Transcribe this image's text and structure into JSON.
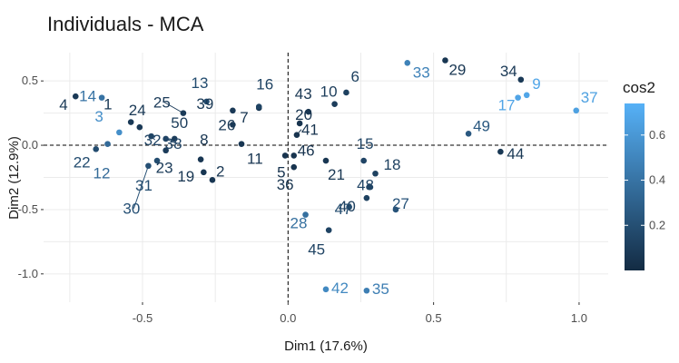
{
  "chart_data": {
    "type": "scatter",
    "title": "Individuals - MCA",
    "xlabel": "Dim1 (17.6%)",
    "ylabel": "Dim2 (12.9%)",
    "xlim": [
      -0.84,
      1.1
    ],
    "ylim": [
      -1.22,
      0.72
    ],
    "x_ticks": [
      -0.5,
      0.0,
      0.5,
      1.0
    ],
    "x_tick_labels": [
      "-0.5",
      "0.0",
      "0.5",
      "1.0"
    ],
    "y_ticks": [
      0.5,
      0.0,
      -0.5,
      -1.0
    ],
    "y_tick_labels": [
      "0.5",
      "0.0",
      "-0.5",
      "-1.0"
    ],
    "grid": true,
    "reference_lines": {
      "x": 0,
      "y": 0,
      "style": "dashed"
    },
    "legend": {
      "title": "cos2",
      "position": "right",
      "ticks": [
        0.2,
        0.4,
        0.6
      ],
      "tick_labels": [
        "0.2",
        "0.4",
        "0.6"
      ],
      "range": [
        0.0,
        0.74
      ],
      "color_low": "#132b43",
      "color_high": "#56b1f7"
    },
    "points": [
      {
        "label": "1",
        "x": -0.54,
        "y": 0.18,
        "cos2": 0.08
      },
      {
        "label": "2",
        "x": -0.26,
        "y": -0.27,
        "cos2": 0.06
      },
      {
        "label": "3",
        "x": -0.58,
        "y": 0.1,
        "cos2": 0.55
      },
      {
        "label": "4",
        "x": -0.73,
        "y": 0.38,
        "cos2": 0.08
      },
      {
        "label": "5",
        "x": -0.01,
        "y": -0.08,
        "cos2": 0.05
      },
      {
        "label": "6",
        "x": 0.2,
        "y": 0.41,
        "cos2": 0.12
      },
      {
        "label": "7",
        "x": -0.1,
        "y": 0.29,
        "cos2": 0.06
      },
      {
        "label": "8",
        "x": -0.3,
        "y": -0.11,
        "cos2": 0.06
      },
      {
        "label": "9",
        "x": 0.82,
        "y": 0.39,
        "cos2": 0.68
      },
      {
        "label": "10",
        "x": 0.16,
        "y": 0.32,
        "cos2": 0.1
      },
      {
        "label": "11",
        "x": -0.16,
        "y": 0.01,
        "cos2": 0.06
      },
      {
        "label": "12",
        "x": -0.62,
        "y": 0.01,
        "cos2": 0.35
      },
      {
        "label": "13",
        "x": -0.28,
        "y": 0.34,
        "cos2": 0.18
      },
      {
        "label": "14",
        "x": -0.64,
        "y": 0.37,
        "cos2": 0.4
      },
      {
        "label": "15",
        "x": 0.26,
        "y": -0.12,
        "cos2": 0.14
      },
      {
        "label": "16",
        "x": -0.1,
        "y": 0.3,
        "cos2": 0.13
      },
      {
        "label": "17",
        "x": 0.79,
        "y": 0.37,
        "cos2": 0.67
      },
      {
        "label": "18",
        "x": 0.3,
        "y": -0.22,
        "cos2": 0.12
      },
      {
        "label": "19",
        "x": -0.29,
        "y": -0.21,
        "cos2": 0.06
      },
      {
        "label": "20",
        "x": 0.04,
        "y": 0.17,
        "cos2": 0.05
      },
      {
        "label": "21",
        "x": 0.13,
        "y": -0.12,
        "cos2": 0.06
      },
      {
        "label": "22",
        "x": -0.66,
        "y": -0.03,
        "cos2": 0.18
      },
      {
        "label": "23",
        "x": -0.42,
        "y": -0.04,
        "cos2": 0.09
      },
      {
        "label": "24",
        "x": -0.51,
        "y": 0.14,
        "cos2": 0.08
      },
      {
        "label": "25",
        "x": -0.36,
        "y": 0.25,
        "cos2": 0.09
      },
      {
        "label": "26",
        "x": -0.19,
        "y": 0.16,
        "cos2": 0.08
      },
      {
        "label": "27",
        "x": 0.37,
        "y": -0.5,
        "cos2": 0.22
      },
      {
        "label": "28",
        "x": 0.06,
        "y": -0.54,
        "cos2": 0.38
      },
      {
        "label": "29",
        "x": 0.54,
        "y": 0.66,
        "cos2": 0.06
      },
      {
        "label": "30",
        "x": -0.48,
        "y": -0.16,
        "cos2": 0.2
      },
      {
        "label": "31",
        "x": -0.45,
        "y": -0.12,
        "cos2": 0.18
      },
      {
        "label": "32",
        "x": -0.47,
        "y": 0.07,
        "cos2": 0.14
      },
      {
        "label": "33",
        "x": 0.41,
        "y": 0.64,
        "cos2": 0.48
      },
      {
        "label": "34",
        "x": 0.8,
        "y": 0.51,
        "cos2": 0.08
      },
      {
        "label": "35",
        "x": 0.27,
        "y": -1.13,
        "cos2": 0.46
      },
      {
        "label": "36",
        "x": 0.02,
        "y": -0.17,
        "cos2": 0.05
      },
      {
        "label": "37",
        "x": 0.99,
        "y": 0.27,
        "cos2": 0.65
      },
      {
        "label": "38",
        "x": -0.42,
        "y": 0.05,
        "cos2": 0.14
      },
      {
        "label": "39",
        "x": -0.19,
        "y": 0.27,
        "cos2": 0.08
      },
      {
        "label": "40",
        "x": 0.27,
        "y": -0.41,
        "cos2": 0.12
      },
      {
        "label": "41",
        "x": 0.03,
        "y": 0.08,
        "cos2": 0.05
      },
      {
        "label": "42",
        "x": 0.13,
        "y": -1.12,
        "cos2": 0.52
      },
      {
        "label": "43",
        "x": 0.07,
        "y": 0.26,
        "cos2": 0.06
      },
      {
        "label": "44",
        "x": 0.73,
        "y": -0.05,
        "cos2": 0.07
      },
      {
        "label": "45",
        "x": 0.14,
        "y": -0.66,
        "cos2": 0.13
      },
      {
        "label": "46",
        "x": 0.02,
        "y": -0.08,
        "cos2": 0.05
      },
      {
        "label": "47",
        "x": 0.21,
        "y": -0.48,
        "cos2": 0.18
      },
      {
        "label": "48",
        "x": 0.28,
        "y": -0.32,
        "cos2": 0.14
      },
      {
        "label": "49",
        "x": 0.62,
        "y": 0.09,
        "cos2": 0.25
      },
      {
        "label": "50",
        "x": -0.39,
        "y": 0.05,
        "cos2": 0.1
      }
    ]
  }
}
